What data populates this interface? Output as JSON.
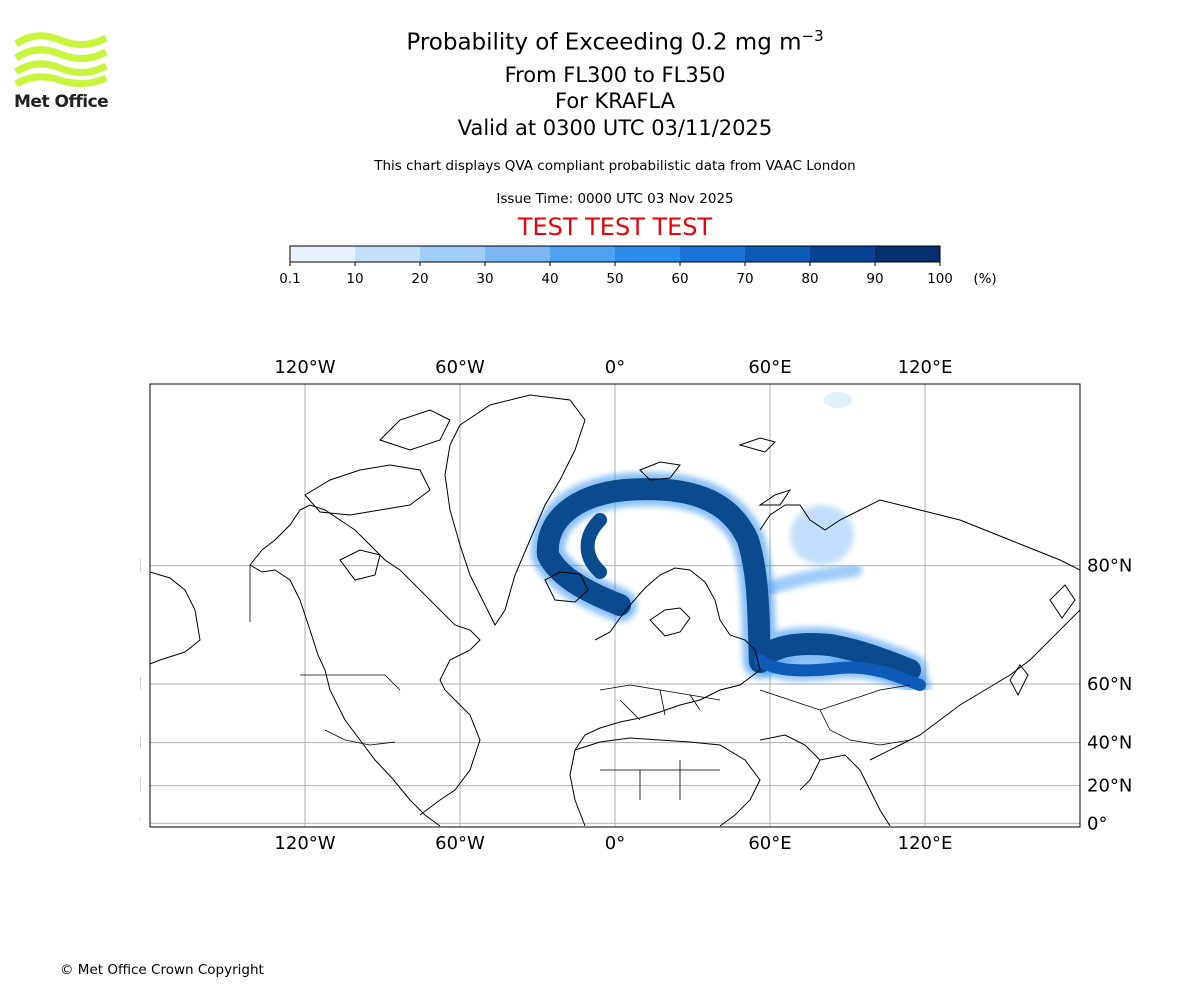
{
  "header": {
    "title_main": "Probability of Exceeding 0.2 mg m",
    "title_sup": "−3",
    "title_line2": "From FL300 to FL350",
    "title_line3": "For KRAFLA",
    "title_line4": "Valid at 0300 UTC 03/11/2025",
    "subtitle": "This chart displays QVA compliant probabilistic data from VAAC London",
    "issue_time": "Issue Time: 0000 UTC 03 Nov 2025",
    "test_banner": "TEST TEST TEST",
    "test_color": "#e8000b"
  },
  "logo": {
    "text": "Met Office",
    "icon": "met-office-waves-icon",
    "color": "#c8f53c"
  },
  "footer": {
    "copyright": "© Met Office Crown Copyright"
  },
  "colorbar": {
    "unit_label": "(%)",
    "ticks": [
      "0.1",
      "10",
      "20",
      "30",
      "40",
      "50",
      "60",
      "70",
      "80",
      "90",
      "100"
    ],
    "colors": [
      "#e8f2fd",
      "#c6e0fb",
      "#a2cdf8",
      "#7bb7f5",
      "#4fa1f1",
      "#2b8deb",
      "#1a73d6",
      "#0d5bb7",
      "#074395",
      "#052f6e"
    ]
  },
  "map": {
    "projection": "mercator",
    "lon_range": [
      -180,
      180
    ],
    "lat_range": [
      -2,
      90
    ],
    "x_ticks": [
      "120°W",
      "60°W",
      "0°",
      "60°E",
      "120°E"
    ],
    "x_tick_values": [
      -120,
      -60,
      0,
      60,
      120
    ],
    "y_ticks": [
      "80°N",
      "60°N",
      "40°N",
      "20°N",
      "0°"
    ],
    "y_tick_values": [
      80,
      60,
      40,
      20,
      0
    ],
    "grid": true,
    "plume_color": "#0a4a8f",
    "plume_edge_color": "#2f8ff0"
  }
}
